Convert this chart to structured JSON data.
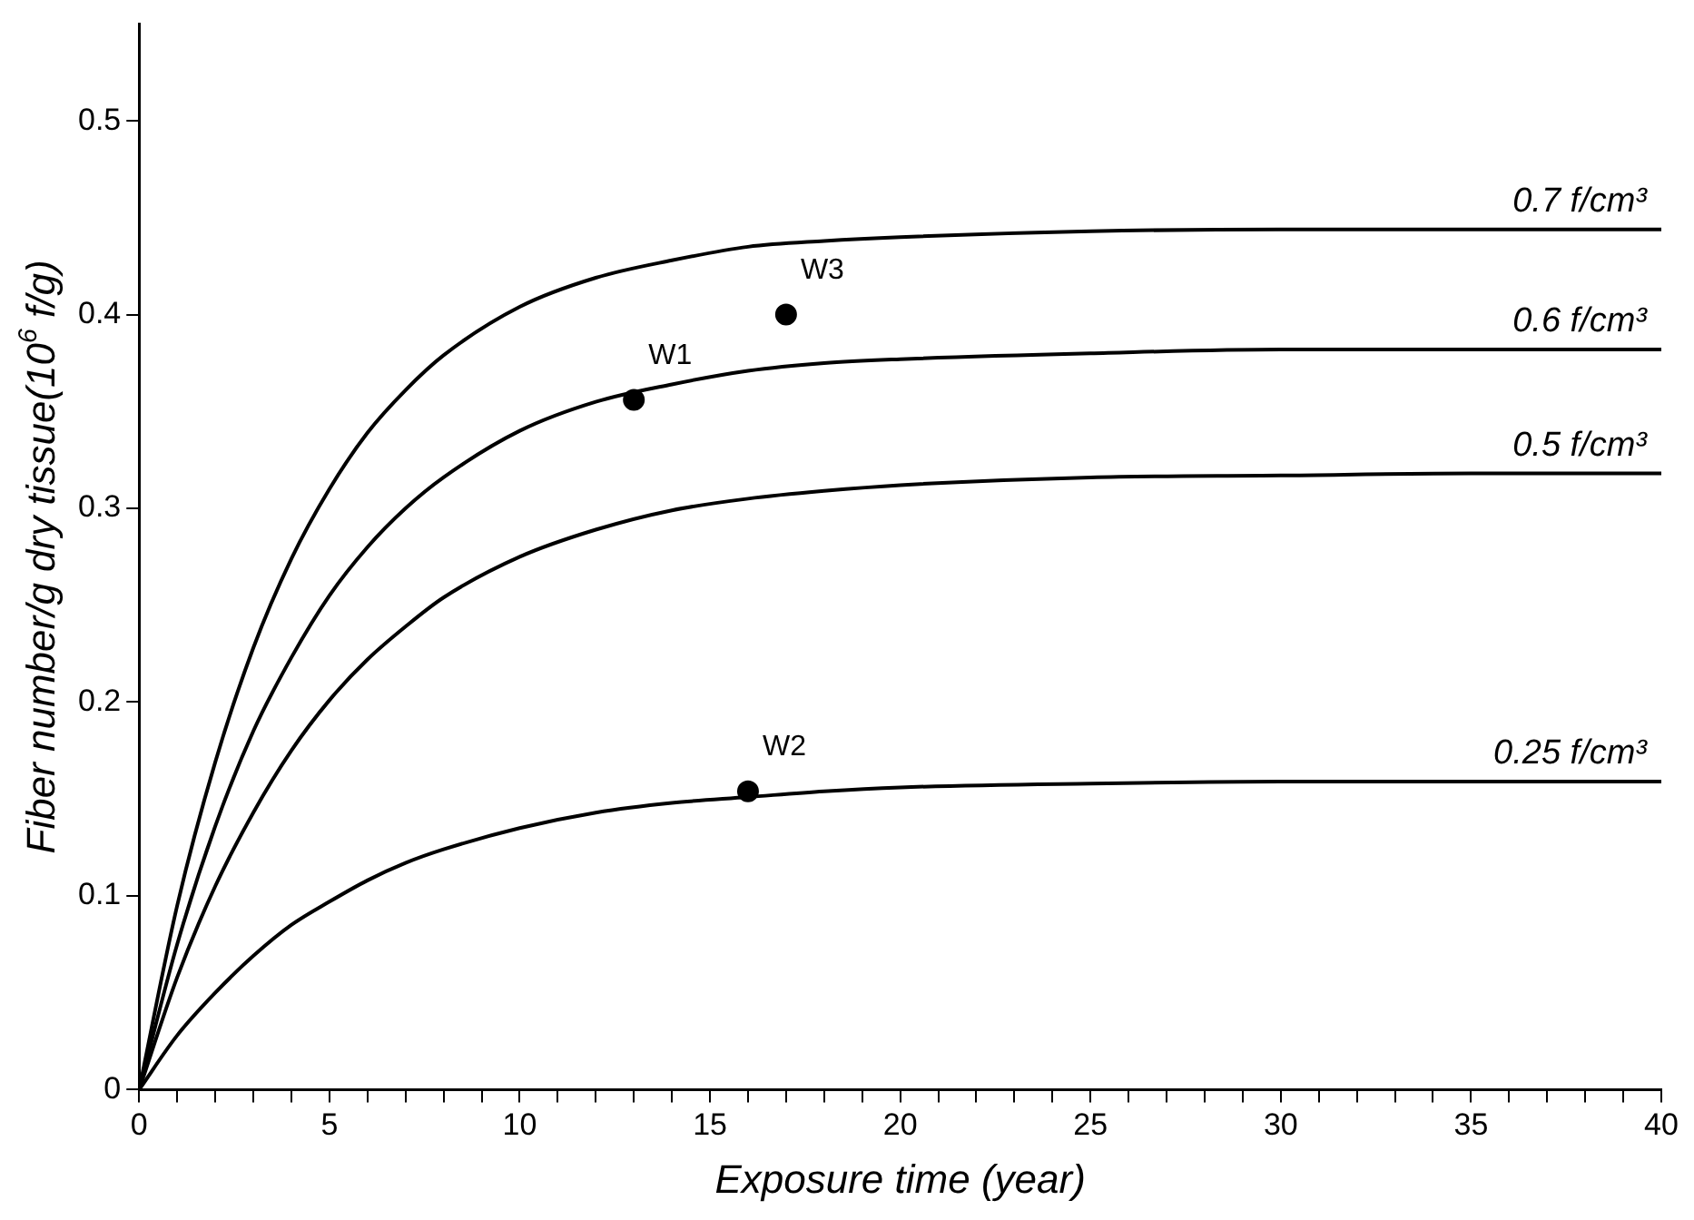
{
  "chart_data": {
    "type": "line",
    "xlabel": "Exposure time (year)",
    "ylabel": "Fiber number/g dry tissue(10$^{6}$ f/g)",
    "x": [
      0,
      1,
      2,
      3,
      4,
      5,
      6,
      7,
      8,
      10,
      12,
      14,
      16,
      18,
      20,
      25,
      30,
      35,
      40
    ],
    "series": [
      {
        "name": "0.7 f/cm³",
        "color": "#000000",
        "values": [
          0,
          0.095,
          0.169,
          0.228,
          0.274,
          0.31,
          0.339,
          0.361,
          0.379,
          0.404,
          0.419,
          0.428,
          0.435,
          0.438,
          0.44,
          0.443,
          0.444,
          0.444,
          0.444
        ]
      },
      {
        "name": "0.6 f/cm³",
        "color": "#000000",
        "values": [
          0,
          0.075,
          0.136,
          0.185,
          0.223,
          0.255,
          0.28,
          0.3,
          0.316,
          0.34,
          0.355,
          0.364,
          0.371,
          0.375,
          0.377,
          0.38,
          0.382,
          0.382,
          0.382
        ]
      },
      {
        "name": "0.5 f/cm³",
        "color": "#000000",
        "values": [
          0,
          0.058,
          0.105,
          0.143,
          0.175,
          0.201,
          0.222,
          0.239,
          0.254,
          0.275,
          0.289,
          0.299,
          0.305,
          0.309,
          0.312,
          0.316,
          0.317,
          0.318,
          0.318
        ]
      },
      {
        "name": "0.25 f/cm³",
        "color": "#000000",
        "values": [
          0,
          0.028,
          0.05,
          0.069,
          0.085,
          0.097,
          0.108,
          0.117,
          0.124,
          0.135,
          0.143,
          0.148,
          0.151,
          0.154,
          0.156,
          0.158,
          0.159,
          0.159,
          0.159
        ]
      },
      {
        "type": "scatter",
        "color": "#000000",
        "x": [
          13,
          16,
          17
        ],
        "values": [
          0.356,
          0.154,
          0.4
        ]
      }
    ],
    "annotations": [
      {
        "text": "W1",
        "x": 13,
        "y": 0.356
      },
      {
        "text": "W2",
        "x": 16,
        "y": 0.154
      },
      {
        "text": "W3",
        "x": 17,
        "y": 0.4
      }
    ],
    "xlim": [
      0,
      40
    ],
    "xticks": [
      0,
      {
        "value": 1,
        "label": null
      },
      {
        "value": 2,
        "label": null
      },
      {
        "value": 3,
        "label": null
      },
      {
        "value": 4,
        "label": null
      },
      5,
      {
        "value": 6,
        "label": null
      },
      {
        "value": 7,
        "label": null
      },
      {
        "value": 8,
        "label": null
      },
      {
        "value": 9,
        "label": null
      },
      10,
      {
        "value": 11,
        "label": null
      },
      {
        "value": 12,
        "label": null
      },
      {
        "value": 13,
        "label": null
      },
      {
        "value": 14,
        "label": null
      },
      15,
      {
        "value": 16,
        "label": null
      },
      {
        "value": 17,
        "label": null
      },
      {
        "value": 18,
        "label": null
      },
      {
        "value": 19,
        "label": null
      },
      20,
      {
        "value": 21,
        "label": null
      },
      {
        "value": 22,
        "label": null
      },
      {
        "value": 23,
        "label": null
      },
      {
        "value": 24,
        "label": null
      },
      25,
      {
        "value": 26,
        "label": null
      },
      {
        "value": 27,
        "label": null
      },
      {
        "value": 28,
        "label": null
      },
      {
        "value": 29,
        "label": null
      },
      30,
      {
        "value": 31,
        "label": null
      },
      {
        "value": 32,
        "label": null
      },
      {
        "value": 33,
        "label": null
      },
      {
        "value": 34,
        "label": null
      },
      35,
      {
        "value": 36,
        "label": null
      },
      {
        "value": 37,
        "label": null
      },
      {
        "value": 38,
        "label": null
      },
      {
        "value": 39,
        "label": null
      },
      40
    ],
    "ylim": [
      0,
      0.55
    ],
    "yticks": [
      0,
      0.1,
      0.2,
      0.3,
      0.4,
      0.5
    ],
    "grid": false,
    "legend": false,
    "line_style": "solid"
  }
}
